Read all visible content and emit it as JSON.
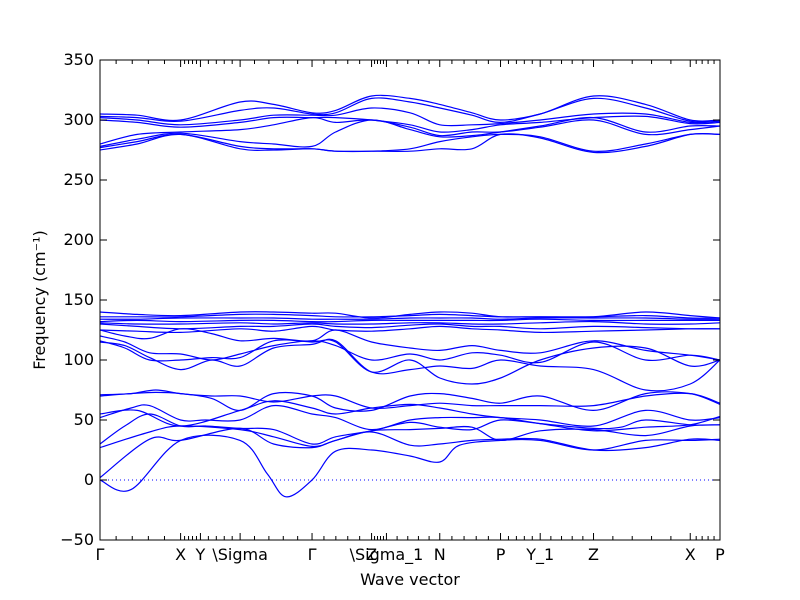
{
  "chart_data": {
    "type": "line",
    "xlabel": "Wave vector",
    "ylabel": "Frequency (cm⁻¹)",
    "ylim": [
      -50,
      350
    ],
    "yticks": [
      -50,
      0,
      50,
      100,
      150,
      200,
      250,
      300,
      350
    ],
    "grid": false,
    "legend": "none",
    "colors": {
      "bands": "#0000ff",
      "zero_line": "#0000ff",
      "axes": "#000000"
    },
    "x_range": [
      0,
      50
    ],
    "high_symmetry_points": [
      {
        "label": "Γ",
        "x": 0
      },
      {
        "label": "X",
        "x": 6.5
      },
      {
        "label": "Y",
        "x": 8.1
      },
      {
        "label": "\\Sigma",
        "x": 11.3
      },
      {
        "label": "Γ",
        "x": 17.1
      },
      {
        "label": "Z",
        "x": 21.9
      },
      {
        "label": "\\Sigma_1",
        "x": 23.1
      },
      {
        "label": "N",
        "x": 27.4
      },
      {
        "label": "P",
        "x": 32.3
      },
      {
        "label": "Y_1",
        "x": 35.5
      },
      {
        "label": "Z",
        "x": 39.8
      },
      {
        "label": "X",
        "x": 47.6
      },
      {
        "label": "P",
        "x": 50
      }
    ],
    "minor_ticks_between": 5,
    "series": [
      {
        "x": [
          0,
          2.5,
          6.5,
          11.3,
          13.5,
          15,
          17.1,
          19,
          21.9,
          25,
          27.4,
          29,
          32.3,
          35.5,
          39.8,
          44,
          47.6,
          50
        ],
        "y": [
          0,
          -8,
          33,
          33,
          5,
          -14,
          0,
          24,
          25,
          20,
          15,
          29,
          33,
          33,
          25,
          33,
          33,
          34
        ]
      },
      {
        "x": [
          0,
          4,
          6.5,
          11.3,
          14,
          17.1,
          19,
          21.9,
          25,
          27.4,
          30,
          32.3,
          35.5,
          39.8,
          44,
          47.6,
          50
        ],
        "y": [
          2,
          34,
          33,
          43,
          30,
          27,
          33,
          40,
          29,
          30,
          33,
          34,
          34,
          25,
          27,
          34,
          33
        ]
      },
      {
        "x": [
          0,
          4,
          6.5,
          11.3,
          14,
          17.1,
          19,
          21.9,
          25,
          27.4,
          30,
          32.3,
          35.5,
          39.8,
          44,
          47.6,
          50
        ],
        "y": [
          27,
          40,
          45,
          42,
          36,
          28,
          33,
          41,
          42,
          43,
          44,
          33,
          41,
          42,
          37,
          45,
          46
        ]
      },
      {
        "x": [
          0,
          2,
          4,
          6.5,
          8.5,
          11.3,
          14,
          17.1,
          19,
          21.9,
          25,
          27.4,
          30,
          32.3,
          35.5,
          39.8,
          42,
          44,
          47.6,
          50
        ],
        "y": [
          30,
          45,
          55,
          45,
          45,
          43,
          42,
          30,
          36,
          41,
          48,
          44,
          42,
          50,
          47,
          43,
          44,
          50,
          46,
          46
        ]
      },
      {
        "x": [
          0,
          2.5,
          4,
          6.5,
          8.5,
          11.3,
          14,
          17.1,
          19,
          21.9,
          25,
          27.4,
          30,
          32.3,
          35.5,
          39.8,
          44,
          47.6,
          50
        ],
        "y": [
          52,
          60,
          62,
          50,
          50,
          50,
          62,
          55,
          52,
          42,
          50,
          52,
          52,
          52,
          47,
          41,
          44,
          46,
          53
        ]
      },
      {
        "x": [
          0,
          3,
          6.5,
          11.3,
          14,
          17.1,
          19,
          21.9,
          25,
          27.4,
          30,
          32.3,
          35.5,
          39.8,
          44,
          47.6,
          50
        ],
        "y": [
          55,
          58,
          45,
          58,
          66,
          60,
          55,
          60,
          63,
          60,
          55,
          52,
          50,
          45,
          58,
          50,
          52
        ]
      },
      {
        "x": [
          0,
          2.5,
          4.5,
          6.5,
          9,
          11.3,
          14,
          17.1,
          19,
          21.9,
          25,
          27.4,
          30,
          32.3,
          35.5,
          39.8,
          44,
          47.6,
          50
        ],
        "y": [
          70,
          72,
          73,
          72,
          68,
          58,
          72,
          70,
          60,
          58,
          70,
          72,
          68,
          64,
          70,
          58,
          72,
          72,
          63
        ]
      },
      {
        "x": [
          0,
          2.5,
          4.5,
          6.5,
          9,
          11.3,
          14,
          17.1,
          19,
          21.9,
          25,
          27.4,
          30,
          32.3,
          35.5,
          39.8,
          44,
          47.6,
          50
        ],
        "y": [
          71,
          72,
          75,
          72,
          70,
          70,
          65,
          70,
          70,
          60,
          62,
          64,
          62,
          62,
          62,
          62,
          70,
          72,
          64
        ]
      },
      {
        "x": [
          0,
          2,
          4,
          6.5,
          9,
          11.3,
          14,
          17.1,
          19,
          21.9,
          25,
          27.4,
          30,
          32.3,
          35.5,
          39.8,
          44,
          47.6,
          50
        ],
        "y": [
          115,
          112,
          102,
          92,
          100,
          95,
          110,
          113,
          116,
          90,
          92,
          95,
          93,
          100,
          95,
          92,
          75,
          80,
          100
        ]
      },
      {
        "x": [
          0,
          2,
          4,
          6.5,
          9,
          11.3,
          14,
          17.1,
          19,
          21.9,
          25,
          27.4,
          30,
          32.3,
          35.5,
          39.8,
          44,
          47.6,
          50
        ],
        "y": [
          116,
          110,
          100,
          100,
          102,
          102,
          116,
          115,
          115,
          90,
          100,
          85,
          80,
          85,
          100,
          110,
          110,
          95,
          100
        ]
      },
      {
        "x": [
          0,
          2,
          4,
          6.5,
          9,
          11.3,
          14,
          17.1,
          19,
          21.9,
          25,
          27.4,
          30,
          32.3,
          35.5,
          39.8,
          44,
          47.6,
          50
        ],
        "y": [
          120,
          115,
          106,
          105,
          100,
          105,
          112,
          116,
          112,
          100,
          105,
          100,
          106,
          104,
          98,
          115,
          100,
          104,
          100
        ]
      },
      {
        "x": [
          0,
          2,
          4,
          6.5,
          9,
          11.3,
          14,
          17.1,
          19,
          21.9,
          25,
          27.4,
          30,
          32.3,
          35.5,
          39.8,
          44,
          47.6,
          50
        ],
        "y": [
          125,
          120,
          118,
          126,
          122,
          116,
          118,
          116,
          125,
          115,
          110,
          108,
          112,
          108,
          106,
          116,
          108,
          104,
          100
        ]
      },
      {
        "x": [
          0,
          3,
          6.5,
          11.3,
          14,
          17.1,
          19,
          21.9,
          25,
          27.4,
          30,
          32.3,
          35.5,
          39.8,
          44,
          47.6,
          50
        ],
        "y": [
          125,
          124,
          123,
          126,
          124,
          128,
          125,
          124,
          126,
          128,
          126,
          125,
          123,
          124,
          125,
          126,
          126
        ]
      },
      {
        "x": [
          0,
          3,
          6.5,
          11.3,
          14,
          17.1,
          19,
          21.9,
          25,
          27.4,
          30,
          32.3,
          35.5,
          39.8,
          44,
          47.6,
          50
        ],
        "y": [
          130,
          128,
          126,
          128,
          128,
          130,
          128,
          127,
          129,
          130,
          128,
          128,
          126,
          128,
          127,
          126,
          126
        ]
      },
      {
        "x": [
          0,
          3,
          6.5,
          11.3,
          14,
          17.1,
          19,
          21.9,
          25,
          27.4,
          30,
          32.3,
          35.5,
          39.8,
          44,
          47.6,
          50
        ],
        "y": [
          131,
          130,
          130,
          131,
          130,
          131,
          130,
          130,
          131,
          131,
          130,
          130,
          131,
          132,
          130,
          130,
          131
        ]
      },
      {
        "x": [
          0,
          3,
          6.5,
          11.3,
          14,
          17.1,
          19,
          21.9,
          25,
          27.4,
          30,
          32.3,
          35.5,
          39.8,
          44,
          47.6,
          50
        ],
        "y": [
          132,
          133,
          132,
          133,
          133,
          132,
          132,
          133,
          133,
          133,
          133,
          133,
          134,
          133,
          133,
          133,
          133
        ]
      },
      {
        "x": [
          0,
          3,
          6.5,
          11.3,
          14,
          17.1,
          19,
          21.9,
          25,
          27.4,
          30,
          32.3,
          35.5,
          39.8,
          44,
          47.6,
          50
        ],
        "y": [
          134,
          134,
          135,
          135,
          135,
          134,
          134,
          134,
          135,
          135,
          135,
          134,
          135,
          135,
          135,
          134,
          134
        ]
      },
      {
        "x": [
          0,
          3,
          6.5,
          11.3,
          14,
          17.1,
          19,
          21.9,
          25,
          27.4,
          30,
          32.3,
          35.5,
          39.8,
          44,
          47.6,
          50
        ],
        "y": [
          136,
          136,
          136,
          138,
          138,
          137,
          136,
          136,
          137,
          138,
          137,
          136,
          136,
          136,
          137,
          135,
          135
        ]
      },
      {
        "x": [
          0,
          3,
          6.5,
          11.3,
          14,
          17.1,
          19,
          21.9,
          25,
          27.4,
          30,
          32.3,
          35.5,
          39.8,
          44,
          47.6,
          50
        ],
        "y": [
          140,
          138,
          137,
          140,
          140,
          139,
          139,
          135,
          138,
          140,
          139,
          136,
          136,
          136,
          140,
          137,
          135
        ]
      },
      {
        "x": [
          0,
          3,
          6.5,
          11.3,
          14,
          17.1,
          19,
          21.9,
          25,
          27.4,
          30,
          32.3,
          35.5,
          39.8,
          44,
          47.6,
          50
        ],
        "y": [
          275,
          280,
          288,
          276,
          275,
          276,
          274,
          274,
          274,
          276,
          276,
          288,
          285,
          273,
          278,
          288,
          288
        ]
      },
      {
        "x": [
          0,
          3,
          6.5,
          11.3,
          14,
          17.1,
          19,
          21.9,
          25,
          27.4,
          30,
          32.3,
          35.5,
          39.8,
          44,
          47.6,
          50
        ],
        "y": [
          277,
          282,
          288,
          278,
          276,
          276,
          274,
          274,
          276,
          282,
          286,
          288,
          286,
          274,
          280,
          288,
          288
        ]
      },
      {
        "x": [
          0,
          3,
          6.5,
          11.3,
          14,
          17.1,
          19,
          21.9,
          25,
          27.4,
          30,
          32.3,
          35.5,
          39.8,
          44,
          47.6,
          50
        ],
        "y": [
          278,
          284,
          289,
          282,
          280,
          278,
          290,
          300,
          292,
          286,
          287,
          290,
          295,
          302,
          290,
          295,
          295
        ]
      },
      {
        "x": [
          0,
          3,
          6.5,
          11.3,
          14,
          17.1,
          19,
          21.9,
          25,
          27.4,
          30,
          32.3,
          35.5,
          39.8,
          44,
          47.6,
          50
        ],
        "y": [
          280,
          288,
          290,
          292,
          296,
          302,
          298,
          300,
          294,
          287,
          290,
          290,
          294,
          300,
          288,
          292,
          295
        ]
      },
      {
        "x": [
          0,
          3,
          6.5,
          11.3,
          14,
          17.1,
          19,
          21.9,
          25,
          27.4,
          30,
          32.3,
          35.5,
          39.8,
          44,
          47.6,
          50
        ],
        "y": [
          300,
          298,
          294,
          298,
          302,
          302,
          302,
          300,
          296,
          290,
          292,
          296,
          298,
          302,
          303,
          297,
          298
        ]
      },
      {
        "x": [
          0,
          3,
          6.5,
          11.3,
          14,
          17.1,
          19,
          21.9,
          25,
          27.4,
          30,
          32.3,
          35.5,
          39.8,
          44,
          47.6,
          50
        ],
        "y": [
          302,
          300,
          296,
          300,
          304,
          304,
          304,
          310,
          306,
          296,
          296,
          297,
          300,
          305,
          305,
          298,
          299
        ]
      },
      {
        "x": [
          0,
          3,
          6.5,
          11.3,
          14,
          17.1,
          19,
          21.9,
          25,
          27.4,
          30,
          32.3,
          35.5,
          39.8,
          44,
          47.6,
          50
        ],
        "y": [
          303,
          302,
          299,
          308,
          310,
          305,
          306,
          318,
          315,
          310,
          304,
          298,
          305,
          318,
          310,
          299,
          299
        ]
      },
      {
        "x": [
          0,
          3,
          6.5,
          11.3,
          14,
          17.1,
          19,
          21.9,
          25,
          27.4,
          30,
          32.3,
          35.5,
          39.8,
          44,
          47.6,
          50
        ],
        "y": [
          305,
          304,
          300,
          315,
          313,
          306,
          308,
          320,
          318,
          313,
          306,
          300,
          305,
          320,
          313,
          300,
          300
        ]
      }
    ]
  }
}
